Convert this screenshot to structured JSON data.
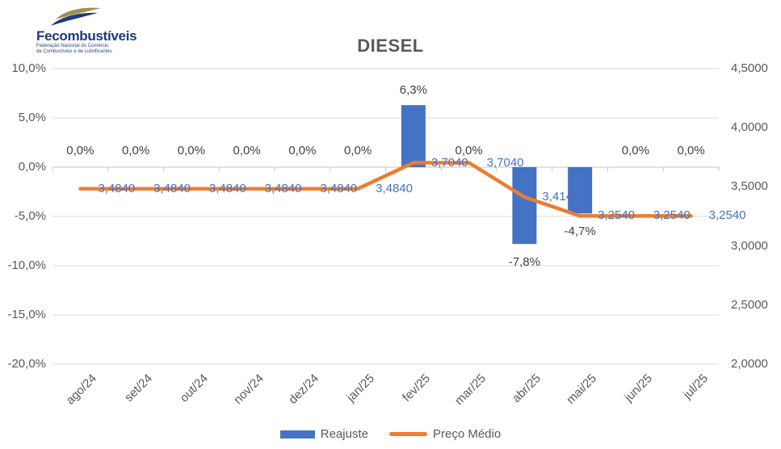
{
  "logo": {
    "name": "Fecombustíveis",
    "subtitle_line1": "Federação Nacional do Comércio",
    "subtitle_line2": "de Combustíveis e de Lubrificantes",
    "navy": "#1e3a7a",
    "gold": "#a38e4d"
  },
  "chart_data": {
    "type": "combo-bar-line",
    "title": "DIESEL",
    "categories": [
      "ago/24",
      "set/24",
      "out/24",
      "nov/24",
      "dez/24",
      "jan/25",
      "fev/25",
      "mar/25",
      "abr/25",
      "mai/25",
      "jun/25",
      "jul/25"
    ],
    "series": [
      {
        "name": "Reajuste",
        "chart_type": "bar",
        "axis": "left",
        "color": "#4472c4",
        "label_color": "#404040",
        "values": [
          0,
          0,
          0,
          0,
          0,
          0,
          6.3,
          0,
          -7.8,
          -4.7,
          0,
          0
        ],
        "labels": [
          "0,0%",
          "0,0%",
          "0,0%",
          "0,0%",
          "0,0%",
          "0,0%",
          "6,3%",
          "0,0%",
          "-7,8%",
          "-4,7%",
          "0,0%",
          "0,0%"
        ]
      },
      {
        "name": "Preço Médio",
        "chart_type": "line",
        "axis": "right",
        "color": "#ed7d31",
        "label_color": "#4472c4",
        "values": [
          3.484,
          3.484,
          3.484,
          3.484,
          3.484,
          3.484,
          3.704,
          3.704,
          3.414,
          3.254,
          3.254,
          3.254
        ],
        "labels": [
          "3,4840",
          "3,4840",
          "3,4840",
          "3,4840",
          "3,4840",
          "3,4840",
          "3,7040",
          "3,7040",
          "3,4140",
          "3,2540",
          "3,2540",
          "3,2540"
        ]
      }
    ],
    "left_axis": {
      "min": -20,
      "max": 10,
      "ticks": [
        {
          "label": "10,0%",
          "value": 10
        },
        {
          "label": "5,0%",
          "value": 5
        },
        {
          "label": "0,0%",
          "value": 0
        },
        {
          "label": "-5,0%",
          "value": -5
        },
        {
          "label": "-10,0%",
          "value": -10
        },
        {
          "label": "-15,0%",
          "value": -15
        },
        {
          "label": "-20,0%",
          "value": -20
        }
      ]
    },
    "right_axis": {
      "min": 2.0,
      "max": 4.5,
      "ticks": [
        {
          "label": "4,5000",
          "value": 4.5
        },
        {
          "label": "4,0000",
          "value": 4.0
        },
        {
          "label": "3,5000",
          "value": 3.5
        },
        {
          "label": "3,0000",
          "value": 3.0
        },
        {
          "label": "2,5000",
          "value": 2.5
        },
        {
          "label": "2,0000",
          "value": 2.0
        }
      ]
    },
    "legend_position": "bottom",
    "grid": "horizontal",
    "gridline_color": "#d9d9d9",
    "zero_axis_color": "#c6c6c6"
  }
}
